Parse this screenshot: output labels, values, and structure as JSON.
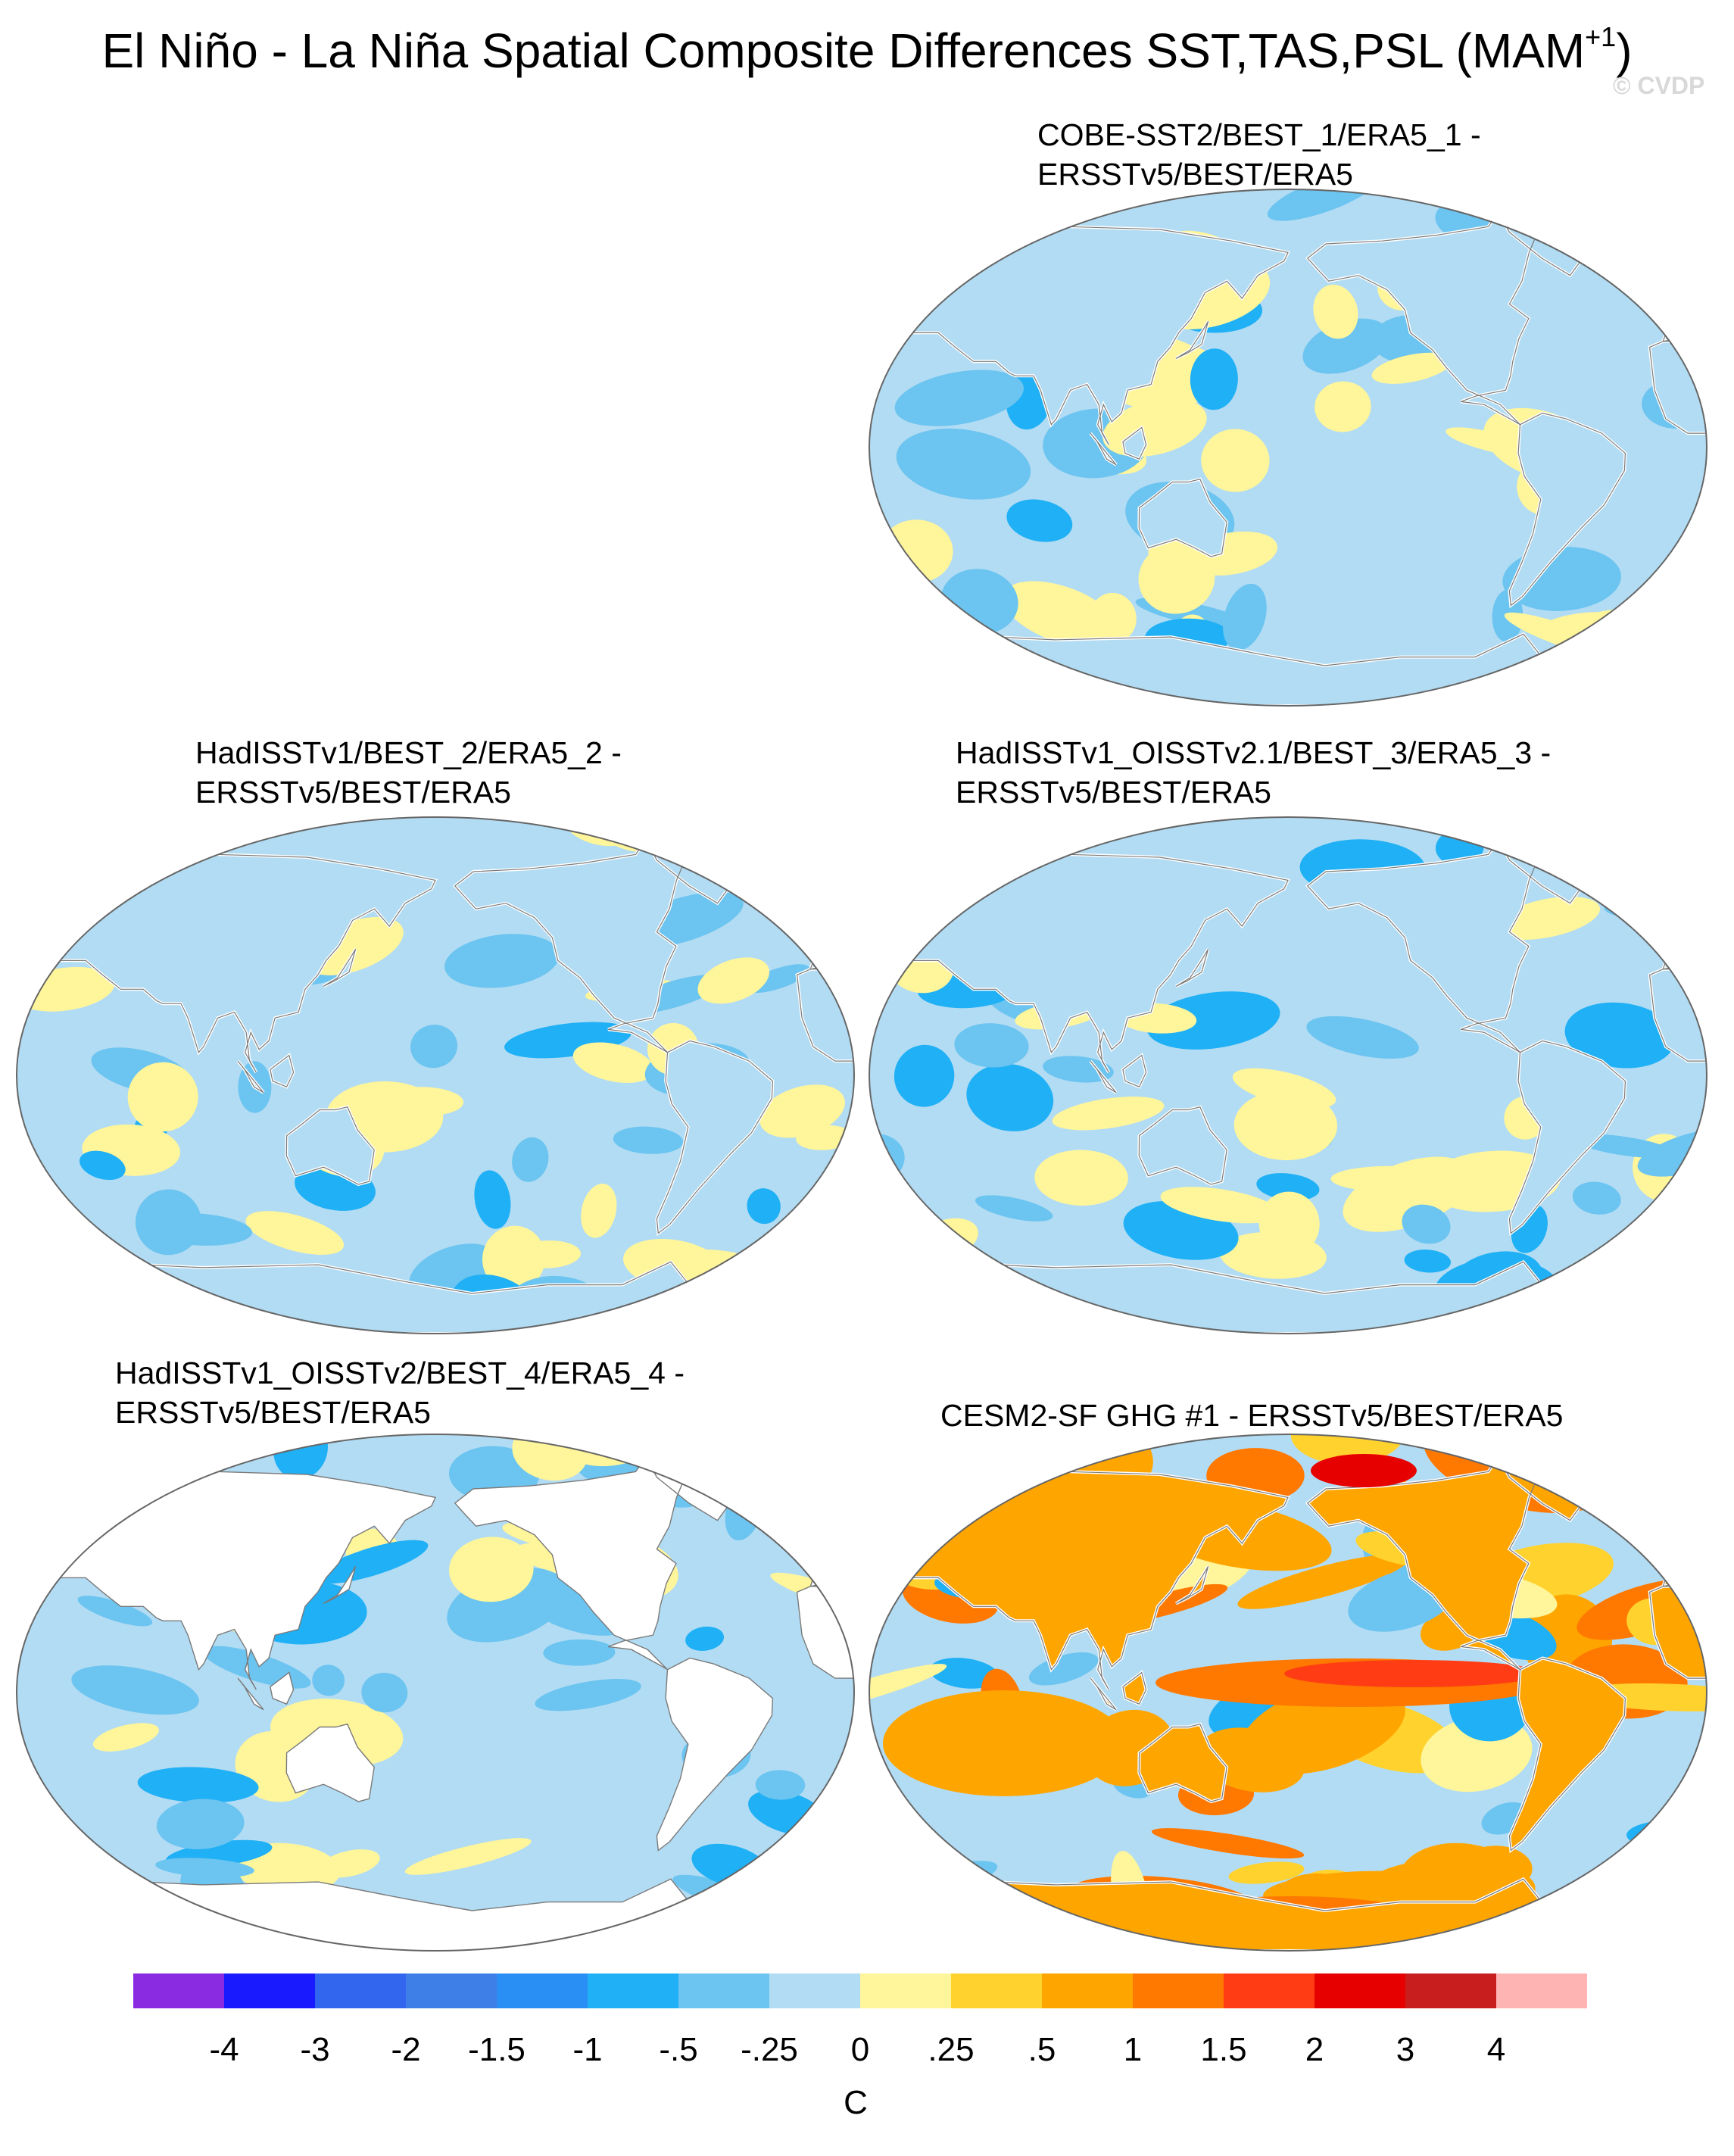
{
  "figure": {
    "title_main": "El Niño - La Niña Spatial Composite Differences SST,TAS,PSL (MAM",
    "title_sup": "+1",
    "title_end": ")",
    "watermark": "© CVDP"
  },
  "panels": [
    {
      "title_line1": "COBE-SST2/BEST_1/ERA5_1 -",
      "title_line2": "ERSSTv5/BEST/ERA5",
      "land_filled": true,
      "style": "weak"
    },
    {
      "title_line1": "HadISSTv1/BEST_2/ERA5_2 -",
      "title_line2": "ERSSTv5/BEST/ERA5",
      "land_filled": true,
      "style": "weak"
    },
    {
      "title_line1": "HadISSTv1_OISSTv2.1/BEST_3/ERA5_3 -",
      "title_line2": "ERSSTv5/BEST/ERA5",
      "land_filled": true,
      "style": "weak"
    },
    {
      "title_line1": "HadISSTv1_OISSTv2/BEST_4/ERA5_4 -",
      "title_line2": "ERSSTv5/BEST/ERA5",
      "land_filled": false,
      "style": "weak"
    },
    {
      "title_line1": "CESM2-SF GHG #1 - ERSSTv5/BEST/ERA5",
      "title_line2": "",
      "land_filled": true,
      "style": "strong"
    }
  ],
  "colorbar": {
    "colors": [
      "#8a2be2",
      "#1a1aff",
      "#3366ee",
      "#3d7fe6",
      "#2a8ff5",
      "#20b0f5",
      "#6cc4f0",
      "#b2dcf3",
      "#fff59a",
      "#ffd22e",
      "#ffa500",
      "#ff7800",
      "#ff3c14",
      "#e60000",
      "#c81e1e",
      "#ffb4b4"
    ],
    "labels": [
      "-4",
      "-3",
      "-2",
      "-1.5",
      "-1",
      "-.5",
      "-.25",
      "0",
      ".25",
      ".5",
      "1",
      "1.5",
      "2",
      "3",
      "4"
    ],
    "unit": "C"
  }
}
